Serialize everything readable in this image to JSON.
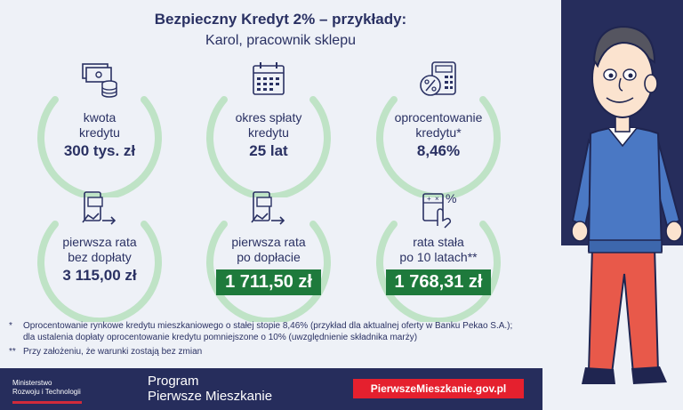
{
  "header": {
    "title": "Bezpieczny Kredyt 2% – przykłady:",
    "subtitle": "Karol, pracownik sklepu"
  },
  "cards": [
    {
      "label1": "kwota",
      "label2": "kredytu",
      "value": "300 tys. zł",
      "icon": "money-coins-icon"
    },
    {
      "label1": "okres spłaty",
      "label2": "kredytu",
      "value": "25 lat",
      "icon": "calendar-icon"
    },
    {
      "label1": "oprocentowanie",
      "label2": "kredytu*",
      "value": "8,46%",
      "icon": "calculator-percent-icon"
    },
    {
      "label1": "pierwsza rata",
      "label2": "bez dopłaty",
      "value": "3 115,00 zł",
      "icon": "phone-payment-icon"
    },
    {
      "label1": "pierwsza rata",
      "label2": "po dopłacie",
      "value": "1 711,50 zł",
      "icon": "phone-payment-icon"
    },
    {
      "label1": "rata stała",
      "label2": "po 10 latach**",
      "value": "1 768,31 zł",
      "icon": "calculator-percent-icon"
    }
  ],
  "notes": {
    "n1_mark": "*",
    "n1_line1": "Oprocentowanie rynkowe kredytu mieszkaniowego o stałej stopie 8,46% (przykład dla aktualnej oferty w Banku Pekao S.A.);",
    "n1_line2": "dla ustalenia dopłaty oprocentowanie kredytu pomniejszone o 10% (uwzględnienie składnika marży)",
    "n2_mark": "**",
    "n2_line1": "Przy założeniu, że warunki zostają bez zmian"
  },
  "footer": {
    "ministry_line1": "Ministerstwo",
    "ministry_line2": "Rozwoju i Technologii",
    "program_line1": "Program",
    "program_line2": "Pierwsze Mieszkanie",
    "url": "PierwszeMieszkanie.gov.pl"
  },
  "colors": {
    "navy": "#262d5c",
    "ring_green": "#bfe3c6",
    "value_green": "#1e7a3c",
    "url_red": "#e5202e"
  }
}
